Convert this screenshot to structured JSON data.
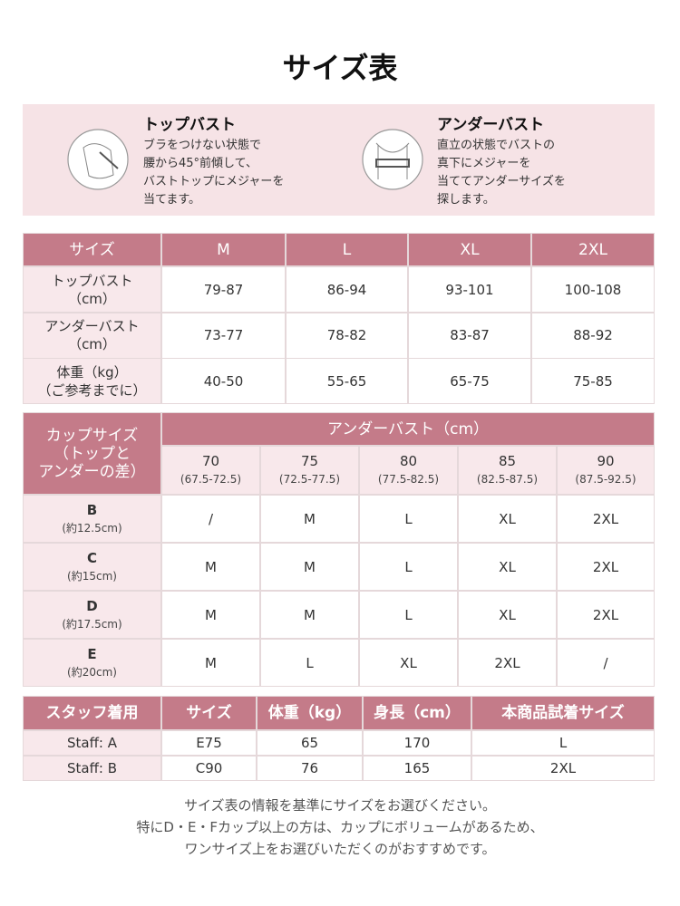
{
  "header": {
    "title": "サイズ表"
  },
  "measure": {
    "items": [
      {
        "title": "トップバスト",
        "lines": [
          "ブラをつけない状態で",
          "腰から45°前傾して、",
          "バストトップにメジャーを",
          "当てます。"
        ]
      },
      {
        "title": "アンダーバスト",
        "lines": [
          "直立の状態でバストの",
          "真下にメジャーを",
          "当ててアンダーサイズを",
          "探します。"
        ]
      }
    ]
  },
  "size_table": {
    "header": [
      "サイズ",
      "M",
      "L",
      "XL",
      "2XL"
    ],
    "rows": [
      {
        "label": [
          "トップバスト",
          "（cm）"
        ],
        "cells": [
          "79-87",
          "86-94",
          "93-101",
          "100-108"
        ]
      },
      {
        "label": [
          "アンダーバスト",
          "（cm）"
        ],
        "cells": [
          "73-77",
          "78-82",
          "83-87",
          "88-92"
        ]
      },
      {
        "label": [
          "体重（kg）",
          "（ご参考までに）"
        ],
        "cells": [
          "40-50",
          "55-65",
          "65-75",
          "75-85"
        ]
      }
    ]
  },
  "cup_table": {
    "corner": [
      "カップサイズ",
      "（トップと",
      "アンダーの差）"
    ],
    "group": "アンダーバスト（cm）",
    "columns": [
      {
        "size": "70",
        "range": "(67.5-72.5)"
      },
      {
        "size": "75",
        "range": "(72.5-77.5)"
      },
      {
        "size": "80",
        "range": "(77.5-82.5)"
      },
      {
        "size": "85",
        "range": "(82.5-87.5)"
      },
      {
        "size": "90",
        "range": "(87.5-92.5)"
      }
    ],
    "rows": [
      {
        "cup": "B",
        "diff": "(約12.5cm)",
        "cells": [
          "/",
          "M",
          "L",
          "XL",
          "2XL"
        ]
      },
      {
        "cup": "C",
        "diff": "(約15cm)",
        "cells": [
          "M",
          "M",
          "L",
          "XL",
          "2XL"
        ]
      },
      {
        "cup": "D",
        "diff": "(約17.5cm)",
        "cells": [
          "M",
          "M",
          "L",
          "XL",
          "2XL"
        ]
      },
      {
        "cup": "E",
        "diff": "(約20cm)",
        "cells": [
          "M",
          "L",
          "XL",
          "2XL",
          "/"
        ]
      }
    ]
  },
  "staff_table": {
    "header": [
      "スタッフ着用",
      "サイズ",
      "体重（kg）",
      "身長（cm）",
      "本商品試着サイズ"
    ],
    "rows": [
      [
        "Staff: A",
        "E75",
        "65",
        "170",
        "L"
      ],
      [
        "Staff: B",
        "C90",
        "76",
        "165",
        "2XL"
      ]
    ]
  },
  "footer": {
    "lines": [
      "サイズ表の情報を基準にサイズをお選びください。",
      "特にD・E・Fカップ以上の方は、カップにボリュームがあるため、",
      "ワンサイズ上をお選びいただくのがおすすめです。"
    ]
  }
}
